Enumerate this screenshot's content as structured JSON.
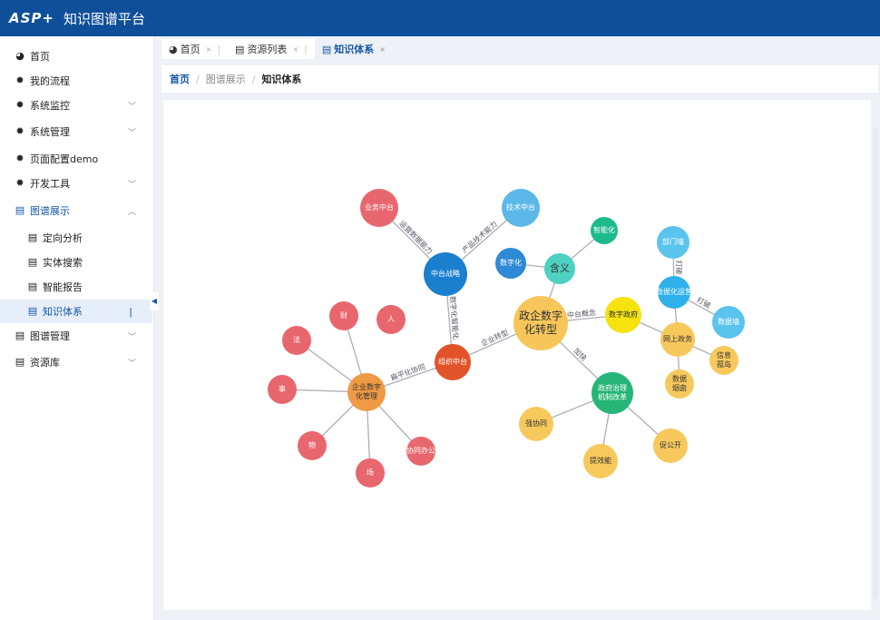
{
  "header": {
    "logo": "ASP+",
    "title": "知识图谱平台"
  },
  "sidebar": {
    "items": [
      {
        "label": "首页",
        "icon": "dashboard-icon",
        "level": 0
      },
      {
        "label": "我的流程",
        "icon": "gear-icon",
        "level": 0
      },
      {
        "label": "系统监控",
        "icon": "gear-icon",
        "level": 0,
        "chevron": "down"
      },
      {
        "label": "系统管理",
        "icon": "gear-icon",
        "level": 0,
        "chevron": "down"
      },
      {
        "label": "页面配置demo",
        "icon": "gear-icon",
        "level": 0
      },
      {
        "label": "开发工具",
        "icon": "gear-icon",
        "level": 0,
        "chevron": "down"
      },
      {
        "label": "图谱展示",
        "icon": "document-icon",
        "level": 0,
        "chevron": "up",
        "open": true
      },
      {
        "label": "定向分析",
        "icon": "document-icon",
        "level": 1
      },
      {
        "label": "实体搜索",
        "icon": "document-icon",
        "level": 1
      },
      {
        "label": "智能报告",
        "icon": "document-icon",
        "level": 1
      },
      {
        "label": "知识体系",
        "icon": "document-icon",
        "level": 1,
        "active": true
      },
      {
        "label": "图谱管理",
        "icon": "document-icon",
        "level": 0,
        "chevron": "down"
      },
      {
        "label": "资源库",
        "icon": "document-icon",
        "level": 0,
        "chevron": "down"
      }
    ]
  },
  "tabs": [
    {
      "label": "首页",
      "icon": "dashboard-icon"
    },
    {
      "label": "资源列表",
      "icon": "document-icon"
    },
    {
      "label": "知识体系",
      "icon": "document-icon",
      "active": true
    }
  ],
  "breadcrumb": [
    "首页",
    "图谱展示",
    "知识体系"
  ],
  "graph": {
    "nodes": [
      {
        "id": "ywzt",
        "label": "业务中台",
        "color": "#e8676e"
      },
      {
        "id": "jszt",
        "label": "技术中台",
        "color": "#5bb8e8"
      },
      {
        "id": "ztzl",
        "label": "中台战略",
        "color": "#1a7fcf"
      },
      {
        "id": "szh",
        "label": "数字化",
        "color": "#2e8ad6"
      },
      {
        "id": "hy",
        "label": "含义",
        "color": "#4fd1c1"
      },
      {
        "id": "znh",
        "label": "智能化",
        "color": "#1dba8e"
      },
      {
        "id": "zq",
        "label": "政企数字化转型",
        "color": "#f7c65a"
      },
      {
        "id": "zzzt",
        "label": "组织中台",
        "color": "#e2532a"
      },
      {
        "id": "qyglh",
        "label": "企业数字化管理",
        "color": "#ef9a45"
      },
      {
        "id": "cai",
        "label": "财",
        "color": "#e8676e"
      },
      {
        "id": "ren",
        "label": "人",
        "color": "#e8676e"
      },
      {
        "id": "fa",
        "label": "法",
        "color": "#e8676e"
      },
      {
        "id": "shi",
        "label": "事",
        "color": "#e8676e"
      },
      {
        "id": "wu",
        "label": "物",
        "color": "#e8676e"
      },
      {
        "id": "chang",
        "label": "场",
        "color": "#e8676e"
      },
      {
        "id": "xtbg",
        "label": "协同办公",
        "color": "#e8676e"
      },
      {
        "id": "szzf",
        "label": "数字政府",
        "color": "#f5e20f"
      },
      {
        "id": "bmq",
        "label": "部门墙",
        "color": "#5bc4ee"
      },
      {
        "id": "sjhyy",
        "label": "数据化运营",
        "color": "#2fb0ea"
      },
      {
        "id": "sjq",
        "label": "数据墙",
        "color": "#5bc4ee"
      },
      {
        "id": "wszw",
        "label": "网上政务",
        "color": "#f7c95c"
      },
      {
        "id": "xxgd",
        "label": "信息孤岛",
        "color": "#f7c95c"
      },
      {
        "id": "sjyc",
        "label": "数据烟囱",
        "color": "#f7c95c"
      },
      {
        "id": "zfzl",
        "label": "政府治理机制改革",
        "color": "#27b577"
      },
      {
        "id": "qxt",
        "label": "强协同",
        "color": "#f7c95c"
      },
      {
        "id": "txn",
        "label": "提效能",
        "color": "#f7c95c"
      },
      {
        "id": "cgk",
        "label": "促公开",
        "color": "#f7c95c"
      }
    ],
    "edges": [
      {
        "from": "ztzl",
        "to": "ywzt",
        "label": "运营数据能力"
      },
      {
        "from": "ztzl",
        "to": "jszt",
        "label": "产品技术能力"
      },
      {
        "from": "ztzl",
        "to": "zzzt",
        "label": "数字化智能化"
      },
      {
        "from": "zzzt",
        "to": "qyglh",
        "label": "扁平化协同"
      },
      {
        "from": "zq",
        "to": "zzzt",
        "label": "企业转型"
      },
      {
        "from": "zq",
        "to": "hy",
        "label": ""
      },
      {
        "from": "hy",
        "to": "szh",
        "label": ""
      },
      {
        "from": "hy",
        "to": "znh",
        "label": ""
      },
      {
        "from": "zq",
        "to": "szzf",
        "label": "中台概念"
      },
      {
        "from": "zq",
        "to": "zfzl",
        "label": "加快"
      },
      {
        "from": "qyglh",
        "to": "cai",
        "label": ""
      },
      {
        "from": "qyglh",
        "to": "fa",
        "label": ""
      },
      {
        "from": "qyglh",
        "to": "shi",
        "label": ""
      },
      {
        "from": "qyglh",
        "to": "wu",
        "label": ""
      },
      {
        "from": "qyglh",
        "to": "chang",
        "label": ""
      },
      {
        "from": "qyglh",
        "to": "xtbg",
        "label": ""
      },
      {
        "from": "szzf",
        "to": "wszw",
        "label": ""
      },
      {
        "from": "wszw",
        "to": "sjhyy",
        "label": ""
      },
      {
        "from": "sjhyy",
        "to": "bmq",
        "label": "打破"
      },
      {
        "from": "sjhyy",
        "to": "sjq",
        "label": "打破"
      },
      {
        "from": "wszw",
        "to": "xxgd",
        "label": ""
      },
      {
        "from": "wszw",
        "to": "sjyc",
        "label": ""
      },
      {
        "from": "zfzl",
        "to": "qxt",
        "label": ""
      },
      {
        "from": "zfzl",
        "to": "txn",
        "label": ""
      },
      {
        "from": "zfzl",
        "to": "cgk",
        "label": ""
      }
    ]
  }
}
